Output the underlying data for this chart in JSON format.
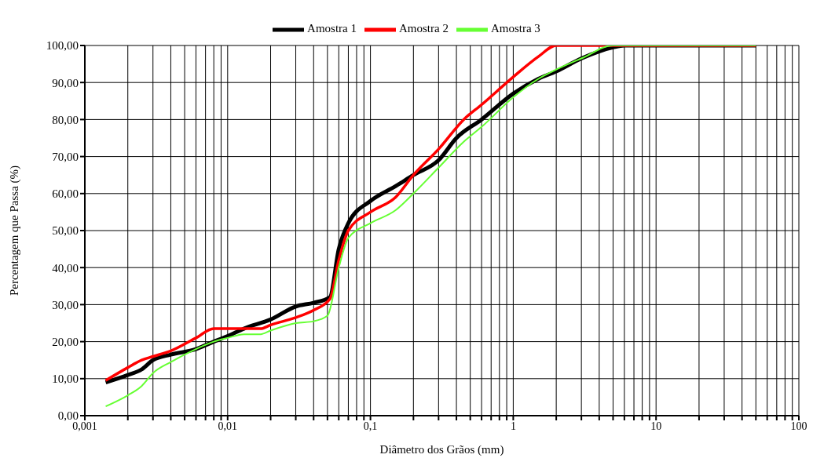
{
  "chart_data": {
    "type": "line",
    "xlabel": "Diâmetro dos Grãos (mm)",
    "ylabel": "Percentagem que Passa (%)",
    "log": "x",
    "grid": true,
    "legend": "top",
    "marker": "none",
    "line_style": "solid",
    "xlim": [
      0.001,
      100
    ],
    "xticks": [
      {
        "value": 0.001,
        "label": "0,001"
      },
      {
        "value": 0.002,
        "label": null
      },
      {
        "value": 0.003,
        "label": null
      },
      {
        "value": 0.004,
        "label": null
      },
      {
        "value": 0.005,
        "label": null
      },
      {
        "value": 0.006,
        "label": null
      },
      {
        "value": 0.007,
        "label": null
      },
      {
        "value": 0.008,
        "label": null
      },
      {
        "value": 0.009,
        "label": null
      },
      {
        "value": 0.01,
        "label": "0,01"
      },
      {
        "value": 0.02,
        "label": null
      },
      {
        "value": 0.03,
        "label": null
      },
      {
        "value": 0.04,
        "label": null
      },
      {
        "value": 0.05,
        "label": null
      },
      {
        "value": 0.06,
        "label": null
      },
      {
        "value": 0.07,
        "label": null
      },
      {
        "value": 0.08,
        "label": null
      },
      {
        "value": 0.09,
        "label": null
      },
      {
        "value": 0.1,
        "label": "0,1"
      },
      {
        "value": 0.2,
        "label": null
      },
      {
        "value": 0.3,
        "label": null
      },
      {
        "value": 0.4,
        "label": null
      },
      {
        "value": 0.5,
        "label": null
      },
      {
        "value": 0.6,
        "label": null
      },
      {
        "value": 0.7,
        "label": null
      },
      {
        "value": 0.8,
        "label": null
      },
      {
        "value": 0.9,
        "label": null
      },
      1,
      {
        "value": 2,
        "label": null
      },
      {
        "value": 3,
        "label": null
      },
      {
        "value": 4,
        "label": null
      },
      {
        "value": 5,
        "label": null
      },
      {
        "value": 6,
        "label": null
      },
      {
        "value": 7,
        "label": null
      },
      {
        "value": 8,
        "label": null
      },
      {
        "value": 9,
        "label": null
      },
      10,
      {
        "value": 20,
        "label": null
      },
      {
        "value": 30,
        "label": null
      },
      {
        "value": 40,
        "label": null
      },
      {
        "value": 50,
        "label": null
      },
      {
        "value": 60,
        "label": null
      },
      {
        "value": 70,
        "label": null
      },
      {
        "value": 80,
        "label": null
      },
      {
        "value": 90,
        "label": null
      },
      100
    ],
    "ylim": [
      0,
      100
    ],
    "yticks": [
      {
        "value": 0,
        "label": "0,00"
      },
      {
        "value": 10,
        "label": "10,00"
      },
      {
        "value": 20,
        "label": "20,00"
      },
      {
        "value": 30,
        "label": "30,00"
      },
      {
        "value": 40,
        "label": "40,00"
      },
      {
        "value": 50,
        "label": "50,00"
      },
      {
        "value": 60,
        "label": "60,00"
      },
      {
        "value": 70,
        "label": "70,00"
      },
      {
        "value": 80,
        "label": "80,00"
      },
      {
        "value": 90,
        "label": "90,00"
      },
      {
        "value": 100,
        "label": "100,00"
      }
    ],
    "series": [
      {
        "name": "Amostra 1",
        "color": "#000000",
        "x": [
          0.0014,
          0.002,
          0.0025,
          0.003,
          0.004,
          0.006,
          0.008,
          0.01,
          0.013,
          0.02,
          0.03,
          0.04,
          0.052,
          0.06,
          0.07,
          0.1,
          0.15,
          0.2,
          0.3,
          0.4,
          0.6,
          1,
          1.5,
          2,
          3,
          5,
          6,
          50
        ],
        "values": [
          9,
          11,
          12.5,
          15,
          16.5,
          18,
          20,
          21.5,
          23.5,
          26,
          29.5,
          30.5,
          32,
          45,
          52,
          58,
          62,
          65,
          69,
          75,
          80,
          87,
          91,
          93,
          96.5,
          99.5,
          100,
          100
        ]
      },
      {
        "name": "Amostra 2",
        "color": "#ff0000",
        "x": [
          0.0014,
          0.002,
          0.0025,
          0.003,
          0.004,
          0.006,
          0.008,
          0.01,
          0.013,
          0.017,
          0.02,
          0.03,
          0.04,
          0.052,
          0.06,
          0.07,
          0.1,
          0.15,
          0.2,
          0.3,
          0.45,
          0.6,
          1,
          1.5,
          2,
          50
        ],
        "values": [
          9.5,
          13,
          15,
          16,
          17.5,
          21,
          23.5,
          23.5,
          23.5,
          23.5,
          24.5,
          26.5,
          28.5,
          31.5,
          42,
          50,
          55,
          59,
          65,
          72,
          80,
          84,
          91.5,
          97,
          100,
          100
        ]
      },
      {
        "name": "Amostra 3",
        "color": "#66ff33",
        "x": [
          0.0014,
          0.002,
          0.0025,
          0.003,
          0.004,
          0.006,
          0.008,
          0.01,
          0.013,
          0.017,
          0.02,
          0.03,
          0.04,
          0.05,
          0.06,
          0.07,
          0.1,
          0.15,
          0.2,
          0.3,
          0.45,
          0.6,
          1,
          1.5,
          2,
          3,
          5,
          50
        ],
        "values": [
          2.5,
          5.5,
          8,
          11.5,
          14.5,
          18,
          20,
          21,
          22,
          22,
          23,
          25,
          25.5,
          27,
          40,
          48,
          52,
          55.5,
          60,
          67,
          74,
          78,
          86,
          91,
          93.5,
          96.5,
          100,
          100
        ]
      }
    ]
  }
}
